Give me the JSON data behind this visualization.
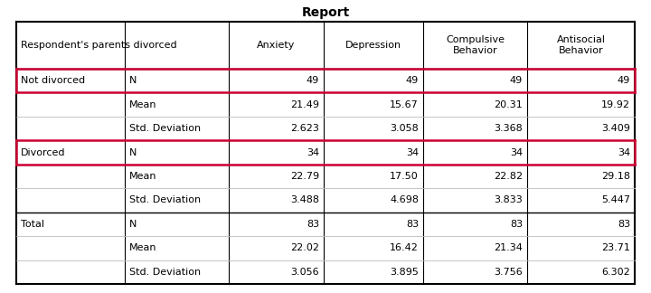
{
  "title": "Report",
  "title_fontsize": 10,
  "title_fontweight": "bold",
  "header_label": "Respondent's parents divorced",
  "col_labels": [
    "Anxiety",
    "Depression",
    "Compulsive\nBehavior",
    "Antisocial\nBehavior"
  ],
  "rows": [
    {
      "group": "Not divorced",
      "stat": "N",
      "vals": [
        "49",
        "49",
        "49",
        "49"
      ]
    },
    {
      "group": "",
      "stat": "Mean",
      "vals": [
        "21.49",
        "15.67",
        "20.31",
        "19.92"
      ]
    },
    {
      "group": "",
      "stat": "Std. Deviation",
      "vals": [
        "2.623",
        "3.058",
        "3.368",
        "3.409"
      ]
    },
    {
      "group": "Divorced",
      "stat": "N",
      "vals": [
        "34",
        "34",
        "34",
        "34"
      ]
    },
    {
      "group": "",
      "stat": "Mean",
      "vals": [
        "22.79",
        "17.50",
        "22.82",
        "29.18"
      ]
    },
    {
      "group": "",
      "stat": "Std. Deviation",
      "vals": [
        "3.488",
        "4.698",
        "3.833",
        "5.447"
      ]
    },
    {
      "group": "Total",
      "stat": "N",
      "vals": [
        "83",
        "83",
        "83",
        "83"
      ]
    },
    {
      "group": "",
      "stat": "Mean",
      "vals": [
        "22.02",
        "16.42",
        "21.34",
        "23.71"
      ]
    },
    {
      "group": "",
      "stat": "Std. Deviation",
      "vals": [
        "3.056",
        "3.895",
        "3.756",
        "6.302"
      ]
    }
  ],
  "red_row_indices": [
    0,
    3
  ],
  "red_color": "#CC0033",
  "black": "#000000",
  "gray_line": "#bbbbbb",
  "bg_color": "#ffffff",
  "font_size": 8.0,
  "figsize": [
    7.2,
    3.24
  ],
  "dpi": 100
}
